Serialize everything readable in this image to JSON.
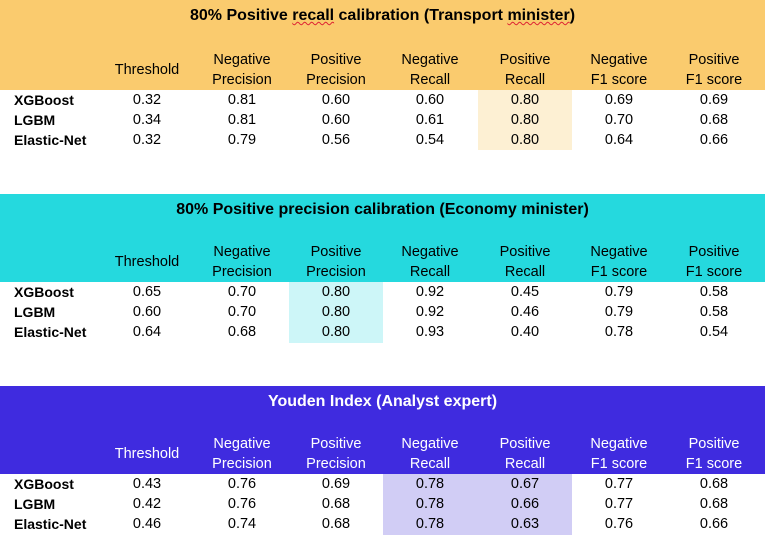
{
  "columns": [
    "Threshold",
    "Negative Precision",
    "Positive Precision",
    "Negative Recall",
    "Positive Recall",
    "Negative F1 score",
    "Positive F1 score"
  ],
  "column_lines": [
    [
      "",
      "Threshold"
    ],
    [
      "Negative",
      "Precision"
    ],
    [
      "Positive",
      "Precision"
    ],
    [
      "Negative",
      "Recall"
    ],
    [
      "Positive",
      "Recall"
    ],
    [
      "Negative",
      "F1 score"
    ],
    [
      "Positive",
      "F1 score"
    ]
  ],
  "colors": {
    "recall_band": "#FACB6E",
    "recall_highlight": "#FDF0D3",
    "precision_band": "#25D9DE",
    "precision_highlight": "#CDF6F8",
    "youden_band": "#3F2BDF",
    "youden_highlight": "#D1CDF5",
    "youden_title_text": "#FFFFFF",
    "header_text": "#000000"
  },
  "tables": [
    {
      "title_parts": [
        "80% Positive ",
        "recall",
        " calibration (Transport ",
        "minister",
        ")"
      ],
      "highlight_columns": [
        4
      ],
      "rows": [
        {
          "model": "XGBoost",
          "values": [
            "0.32",
            "0.81",
            "0.60",
            "0.60",
            "0.80",
            "0.69",
            "0.69"
          ]
        },
        {
          "model": "LGBM",
          "values": [
            "0.34",
            "0.81",
            "0.60",
            "0.61",
            "0.80",
            "0.70",
            "0.68"
          ]
        },
        {
          "model": "Elastic-Net",
          "values": [
            "0.32",
            "0.79",
            "0.56",
            "0.54",
            "0.80",
            "0.64",
            "0.66"
          ]
        }
      ]
    },
    {
      "title_parts": [
        "80% Positive precision calibration (Economy minister)"
      ],
      "highlight_columns": [
        2
      ],
      "rows": [
        {
          "model": "XGBoost",
          "values": [
            "0.65",
            "0.70",
            "0.80",
            "0.92",
            "0.45",
            "0.79",
            "0.58"
          ]
        },
        {
          "model": "LGBM",
          "values": [
            "0.60",
            "0.70",
            "0.80",
            "0.92",
            "0.46",
            "0.79",
            "0.58"
          ]
        },
        {
          "model": "Elastic-Net",
          "values": [
            "0.64",
            "0.68",
            "0.80",
            "0.93",
            "0.40",
            "0.78",
            "0.54"
          ]
        }
      ]
    },
    {
      "title_parts": [
        "Youden Index (Analyst expert)"
      ],
      "highlight_columns": [
        3,
        4
      ],
      "rows": [
        {
          "model": "XGBoost",
          "values": [
            "0.43",
            "0.76",
            "0.69",
            "0.78",
            "0.67",
            "0.77",
            "0.68"
          ]
        },
        {
          "model": "LGBM",
          "values": [
            "0.42",
            "0.76",
            "0.68",
            "0.78",
            "0.66",
            "0.77",
            "0.68"
          ]
        },
        {
          "model": "Elastic-Net",
          "values": [
            "0.46",
            "0.74",
            "0.68",
            "0.78",
            "0.63",
            "0.76",
            "0.66"
          ]
        }
      ]
    }
  ]
}
